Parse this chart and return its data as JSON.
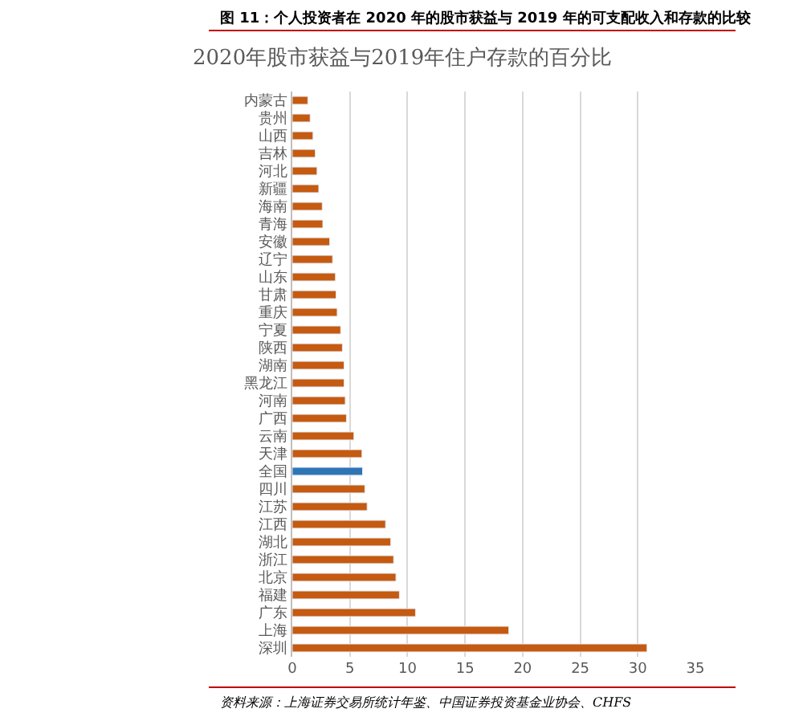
{
  "chart_data": {
    "type": "bar",
    "orientation": "horizontal",
    "title": "图 11：个人投资者在 2020 年的股市获益与 2019 年的可支配收入和存款的比较",
    "subtitle": "2020年股市获益与2019年住户存款的百分比",
    "categories": [
      "内蒙古",
      "贵州",
      "山西",
      "吉林",
      "河北",
      "新疆",
      "海南",
      "青海",
      "安徽",
      "辽宁",
      "山东",
      "甘肃",
      "重庆",
      "宁夏",
      "陕西",
      "湖南",
      "黑龙江",
      "河南",
      "广西",
      "云南",
      "天津",
      "全国",
      "四川",
      "江苏",
      "江西",
      "湖北",
      "浙江",
      "北京",
      "福建",
      "广东",
      "上海",
      "深圳"
    ],
    "values": [
      1.35,
      1.55,
      1.8,
      2.0,
      2.15,
      2.3,
      2.6,
      2.65,
      3.25,
      3.5,
      3.75,
      3.8,
      3.9,
      4.2,
      4.35,
      4.5,
      4.5,
      4.6,
      4.7,
      5.35,
      6.05,
      6.1,
      6.3,
      6.5,
      8.1,
      8.55,
      8.8,
      9.0,
      9.3,
      10.7,
      18.8,
      30.8
    ],
    "colors": [
      "#c55a11",
      "#c55a11",
      "#c55a11",
      "#c55a11",
      "#c55a11",
      "#c55a11",
      "#c55a11",
      "#c55a11",
      "#c55a11",
      "#c55a11",
      "#c55a11",
      "#c55a11",
      "#c55a11",
      "#c55a11",
      "#c55a11",
      "#c55a11",
      "#c55a11",
      "#c55a11",
      "#c55a11",
      "#c55a11",
      "#c55a11",
      "#2e75b6",
      "#c55a11",
      "#c55a11",
      "#c55a11",
      "#c55a11",
      "#c55a11",
      "#c55a11",
      "#c55a11",
      "#c55a11",
      "#c55a11",
      "#c55a11"
    ],
    "xlim": [
      0,
      35
    ],
    "xticks": [
      0,
      5,
      10,
      15,
      20,
      25,
      30,
      35
    ],
    "grid": "x",
    "legend": false,
    "annotations": [
      "资料来源：上海证券交易所统计年鉴、中国证券投资基金业协会、CHFS"
    ]
  }
}
